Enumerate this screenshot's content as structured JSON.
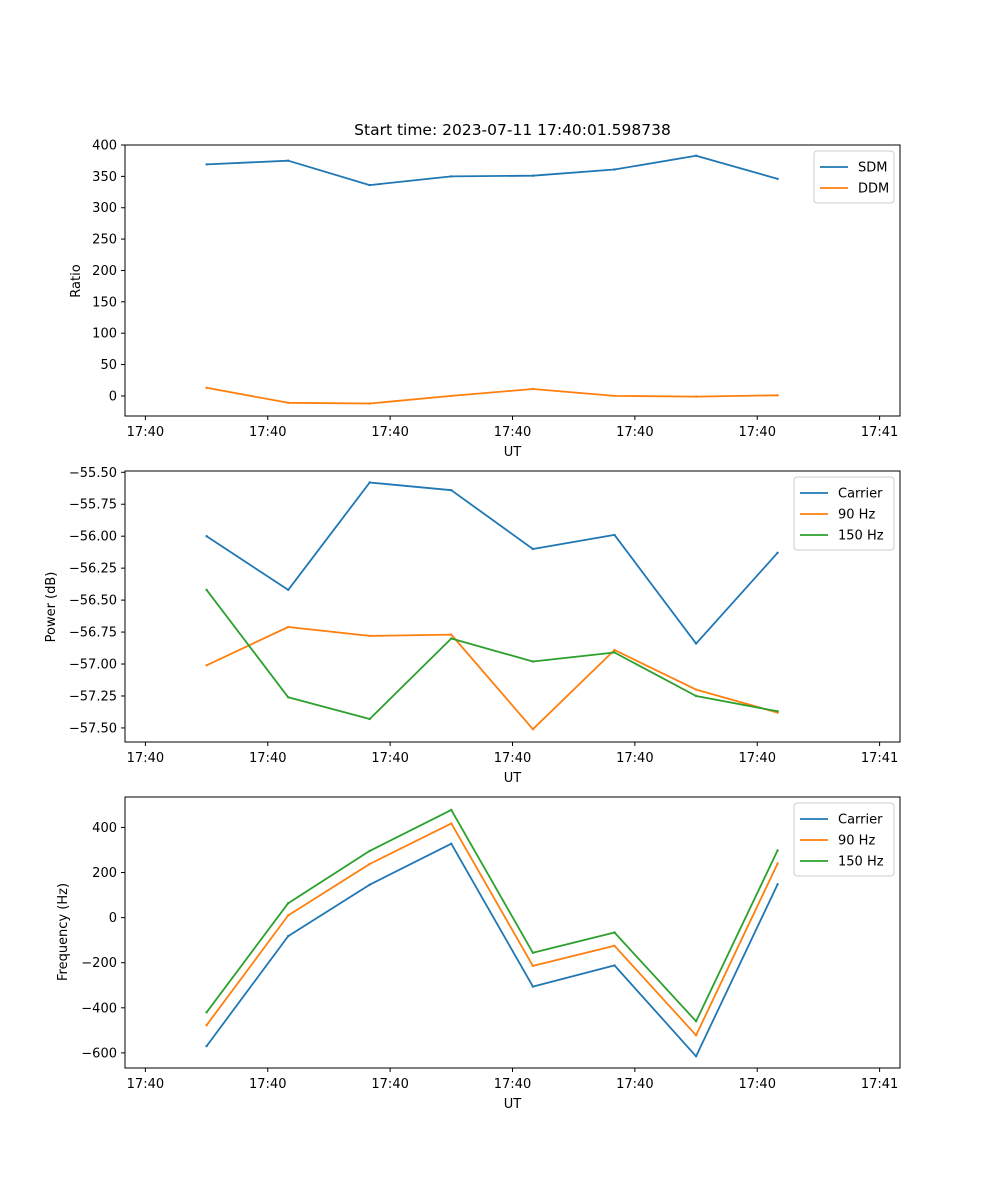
{
  "figure_title": "Start time: 2023-07-11 17:40:01.598738",
  "colors": {
    "blue": "#1f77b4",
    "orange": "#ff7f0e",
    "green": "#2ca02c"
  },
  "chart_data": [
    {
      "type": "line",
      "title": "Start time: 2023-07-11 17:40:01.598738",
      "xlabel": "UT",
      "ylabel": "Ratio",
      "x": [
        1,
        2,
        3,
        4,
        5,
        6,
        7,
        8
      ],
      "xlim": [
        0,
        9.5
      ],
      "xticks": [
        0.25,
        1.75,
        3.25,
        4.75,
        6.25,
        7.75,
        9.25
      ],
      "xtick_labels": [
        "17:40",
        "17:40",
        "17:40",
        "17:40",
        "17:40",
        "17:40",
        "17:41"
      ],
      "ylim": [
        -32,
        400
      ],
      "yticks": [
        0,
        50,
        100,
        150,
        200,
        250,
        300,
        350,
        400
      ],
      "ytick_labels": [
        "0",
        "50",
        "100",
        "150",
        "200",
        "250",
        "300",
        "350",
        "400"
      ],
      "legend_position": "upper-right",
      "series": [
        {
          "name": "SDM",
          "color": "#1f77b4",
          "values": [
            369,
            375,
            336,
            350,
            351,
            361,
            383,
            346
          ]
        },
        {
          "name": "DDM",
          "color": "#ff7f0e",
          "values": [
            13,
            -11,
            -12,
            0,
            11,
            0,
            -1,
            1
          ]
        }
      ]
    },
    {
      "type": "line",
      "title": "",
      "xlabel": "UT",
      "ylabel": "Power (dB)",
      "x": [
        1,
        2,
        3,
        4,
        5,
        6,
        7,
        8
      ],
      "xlim": [
        0,
        9.5
      ],
      "xticks": [
        0.25,
        1.75,
        3.25,
        4.75,
        6.25,
        7.75,
        9.25
      ],
      "xtick_labels": [
        "17:40",
        "17:40",
        "17:40",
        "17:40",
        "17:40",
        "17:40",
        "17:41"
      ],
      "ylim": [
        -57.61,
        -55.49
      ],
      "yticks": [
        -57.5,
        -57.25,
        -57.0,
        -56.75,
        -56.5,
        -56.25,
        -56.0,
        -55.75,
        -55.5
      ],
      "ytick_labels": [
        "−57.50",
        "−57.25",
        "−57.00",
        "−56.75",
        "−56.50",
        "−56.25",
        "−56.00",
        "−55.75",
        "−55.50"
      ],
      "legend_position": "upper-right",
      "series": [
        {
          "name": "Carrier",
          "color": "#1f77b4",
          "values": [
            -56.0,
            -56.42,
            -55.58,
            -55.64,
            -56.1,
            -55.99,
            -56.84,
            -56.13
          ]
        },
        {
          "name": "90 Hz",
          "color": "#ff7f0e",
          "values": [
            -57.01,
            -56.71,
            -56.78,
            -56.77,
            -57.51,
            -56.89,
            -57.2,
            -57.38
          ]
        },
        {
          "name": "150 Hz",
          "color": "#2ca02c",
          "values": [
            -56.42,
            -57.26,
            -57.43,
            -56.8,
            -56.98,
            -56.91,
            -57.25,
            -57.37
          ]
        }
      ]
    },
    {
      "type": "line",
      "title": "",
      "xlabel": "UT",
      "ylabel": "Frequency (Hz)",
      "x": [
        1,
        2,
        3,
        4,
        5,
        6,
        7,
        8
      ],
      "xlim": [
        0,
        9.5
      ],
      "xticks": [
        0.25,
        1.75,
        3.25,
        4.75,
        6.25,
        7.75,
        9.25
      ],
      "xtick_labels": [
        "17:40",
        "17:40",
        "17:40",
        "17:40",
        "17:40",
        "17:40",
        "17:41"
      ],
      "ylim": [
        -667,
        535
      ],
      "yticks": [
        -600,
        -400,
        -200,
        0,
        200,
        400
      ],
      "ytick_labels": [
        "−600",
        "−400",
        "−200",
        "0",
        "200",
        "400"
      ],
      "legend_position": "upper-right",
      "series": [
        {
          "name": "Carrier",
          "color": "#1f77b4",
          "values": [
            -570,
            -82,
            146,
            328,
            -306,
            -212,
            -615,
            148
          ]
        },
        {
          "name": "90 Hz",
          "color": "#ff7f0e",
          "values": [
            -477,
            10,
            238,
            418,
            -214,
            -125,
            -522,
            240
          ]
        },
        {
          "name": "150 Hz",
          "color": "#2ca02c",
          "values": [
            -420,
            64,
            296,
            478,
            -156,
            -66,
            -460,
            298
          ]
        }
      ]
    }
  ]
}
